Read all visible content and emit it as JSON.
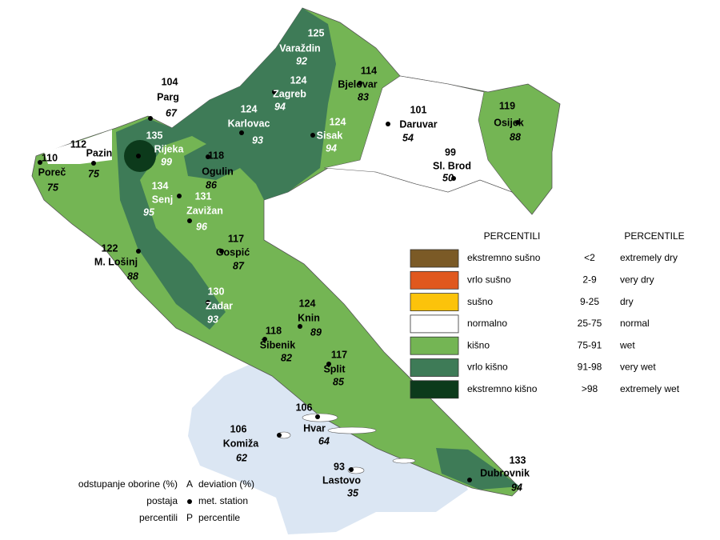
{
  "stations": [
    {
      "name": "Varaždin",
      "deviation": 125,
      "percentile": 92
    },
    {
      "name": "Zagreb",
      "deviation": 124,
      "percentile": 94
    },
    {
      "name": "Bjelovar",
      "deviation": 114,
      "percentile": 83
    },
    {
      "name": "Karlovac",
      "deviation": 124,
      "percentile": 93
    },
    {
      "name": "Sisak",
      "deviation": 124,
      "percentile": 94
    },
    {
      "name": "Daruvar",
      "deviation": 101,
      "percentile": 54
    },
    {
      "name": "Osijek",
      "deviation": 119,
      "percentile": 88
    },
    {
      "name": "Parg",
      "deviation": 104,
      "percentile": 67
    },
    {
      "name": "Rijeka",
      "deviation": 135,
      "percentile": 99
    },
    {
      "name": "Pazin",
      "deviation": 112,
      "percentile": 75
    },
    {
      "name": "Poreč",
      "deviation": 110,
      "percentile": 75
    },
    {
      "name": "Ogulin",
      "deviation": 118,
      "percentile": 86
    },
    {
      "name": "Senj",
      "deviation": 134,
      "percentile": 95
    },
    {
      "name": "Zavižan",
      "deviation": 131,
      "percentile": 96
    },
    {
      "name": "Sl. Brod",
      "deviation": 99,
      "percentile": 50
    },
    {
      "name": "M. Lošinj",
      "deviation": 122,
      "percentile": 88
    },
    {
      "name": "Gospić",
      "deviation": 117,
      "percentile": 87
    },
    {
      "name": "Zadar",
      "deviation": 130,
      "percentile": 93
    },
    {
      "name": "Knin",
      "deviation": 124,
      "percentile": 89
    },
    {
      "name": "Šibenik",
      "deviation": 118,
      "percentile": 82
    },
    {
      "name": "Split",
      "deviation": 117,
      "percentile": 85
    },
    {
      "name": "Hvar",
      "deviation": 106,
      "percentile": 64
    },
    {
      "name": "Komiža",
      "deviation": 106,
      "percentile": 62
    },
    {
      "name": "Lastovo",
      "deviation": 93,
      "percentile": 35
    },
    {
      "name": "Dubrovnik",
      "deviation": 133,
      "percentile": 94
    }
  ],
  "legend": {
    "header_hr": "PERCENTILI",
    "header_en": "PERCENTILE",
    "rows": [
      {
        "color": "#7b5a26",
        "label_hr": "ekstremno sušno",
        "range": "<2",
        "label_en": "extremely dry"
      },
      {
        "color": "#e0581e",
        "label_hr": "vrlo sušno",
        "range": "2-9",
        "label_en": "very dry"
      },
      {
        "color": "#fcc30b",
        "label_hr": "sušno",
        "range": "9-25",
        "label_en": "dry"
      },
      {
        "color": "#ffffff",
        "label_hr": "normalno",
        "range": "25-75",
        "label_en": "normal"
      },
      {
        "color": "#74b554",
        "label_hr": "kišno",
        "range": "75-91",
        "label_en": "wet"
      },
      {
        "color": "#3e7b57",
        "label_hr": "vrlo kišno",
        "range": "91-98",
        "label_en": "very wet"
      },
      {
        "color": "#0c3a1b",
        "label_hr": "ekstremno kišno",
        "range": ">98",
        "label_en": "extremely wet"
      }
    ]
  },
  "key": {
    "deviation_hr": "odstupanje oborine (%)",
    "deviation_symbol": "A",
    "deviation_en": "deviation (%)",
    "station_hr": "postaja",
    "station_en": "met. station",
    "percentile_hr": "percentili",
    "percentile_symbol": "P",
    "percentile_en": "percentile"
  }
}
